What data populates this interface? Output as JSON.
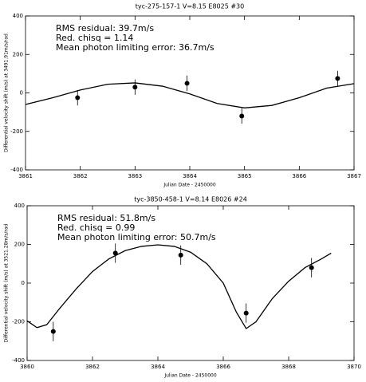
{
  "chart_data": [
    {
      "type": "scatter",
      "title": "tyc-275-157-1 V=8.15 E8025 #30",
      "xlabel": "Julian Date - 2450000",
      "ylabel": "Differential velocity shift (m/s) at 3491.91m/s/rad",
      "annotations": [
        "RMS residual: 39.7m/s",
        "Red. chisq = 1.14",
        "Mean photon limiting error: 36.7m/s"
      ],
      "x": [
        3861.95,
        3863.0,
        3863.95,
        3864.95,
        3866.7
      ],
      "values": [
        -25,
        30,
        50,
        -120,
        75
      ],
      "errors": [
        40,
        40,
        40,
        40,
        40
      ],
      "curve": {
        "x": [
          3861,
          3861.5,
          3862,
          3862.5,
          3863,
          3863.5,
          3864,
          3864.5,
          3865,
          3865.5,
          3866,
          3866.5,
          3867
        ],
        "values": [
          -60,
          -25,
          15,
          45,
          52,
          35,
          -5,
          -55,
          -78,
          -65,
          -25,
          25,
          48
        ]
      },
      "xlim": [
        3861,
        3867
      ],
      "xticks": [
        3861,
        3862,
        3863,
        3864,
        3865,
        3866,
        3867
      ],
      "ylim": [
        -400,
        400
      ],
      "yticks": [
        -400,
        -200,
        0,
        200,
        400
      ]
    },
    {
      "type": "scatter",
      "title": "tyc-3850-458-1 V=8.14 E8026 #24",
      "xlabel": "Julian Date - 2450000",
      "ylabel": "Differential velocity shift (m/s) at 3521.28m/s/rad",
      "annotations": [
        "RMS residual: 51.8m/s",
        "Red. chisq = 0.99",
        "Mean photon limiting error: 50.7m/s"
      ],
      "x": [
        3860.8,
        3862.7,
        3864.7,
        3866.7,
        3868.7
      ],
      "values": [
        -250,
        155,
        145,
        -155,
        80
      ],
      "errors": [
        50,
        50,
        50,
        50,
        50
      ],
      "curve": {
        "x": [
          3860,
          3860.3,
          3860.6,
          3861,
          3861.5,
          3862,
          3862.5,
          3863,
          3863.5,
          3864,
          3864.5,
          3865,
          3865.5,
          3866,
          3866.4,
          3866.7,
          3867,
          3867.5,
          3868,
          3868.5,
          3869,
          3869.3
        ],
        "values": [
          -195,
          -230,
          -215,
          -130,
          -30,
          60,
          125,
          168,
          190,
          198,
          190,
          160,
          100,
          0,
          -150,
          -235,
          -200,
          -80,
          10,
          80,
          125,
          155
        ]
      },
      "xlim": [
        3860,
        3870
      ],
      "xticks": [
        3860,
        3862,
        3864,
        3866,
        3868,
        3870
      ],
      "ylim": [
        -400,
        400
      ],
      "yticks": [
        -400,
        -200,
        0,
        200,
        400
      ]
    }
  ]
}
